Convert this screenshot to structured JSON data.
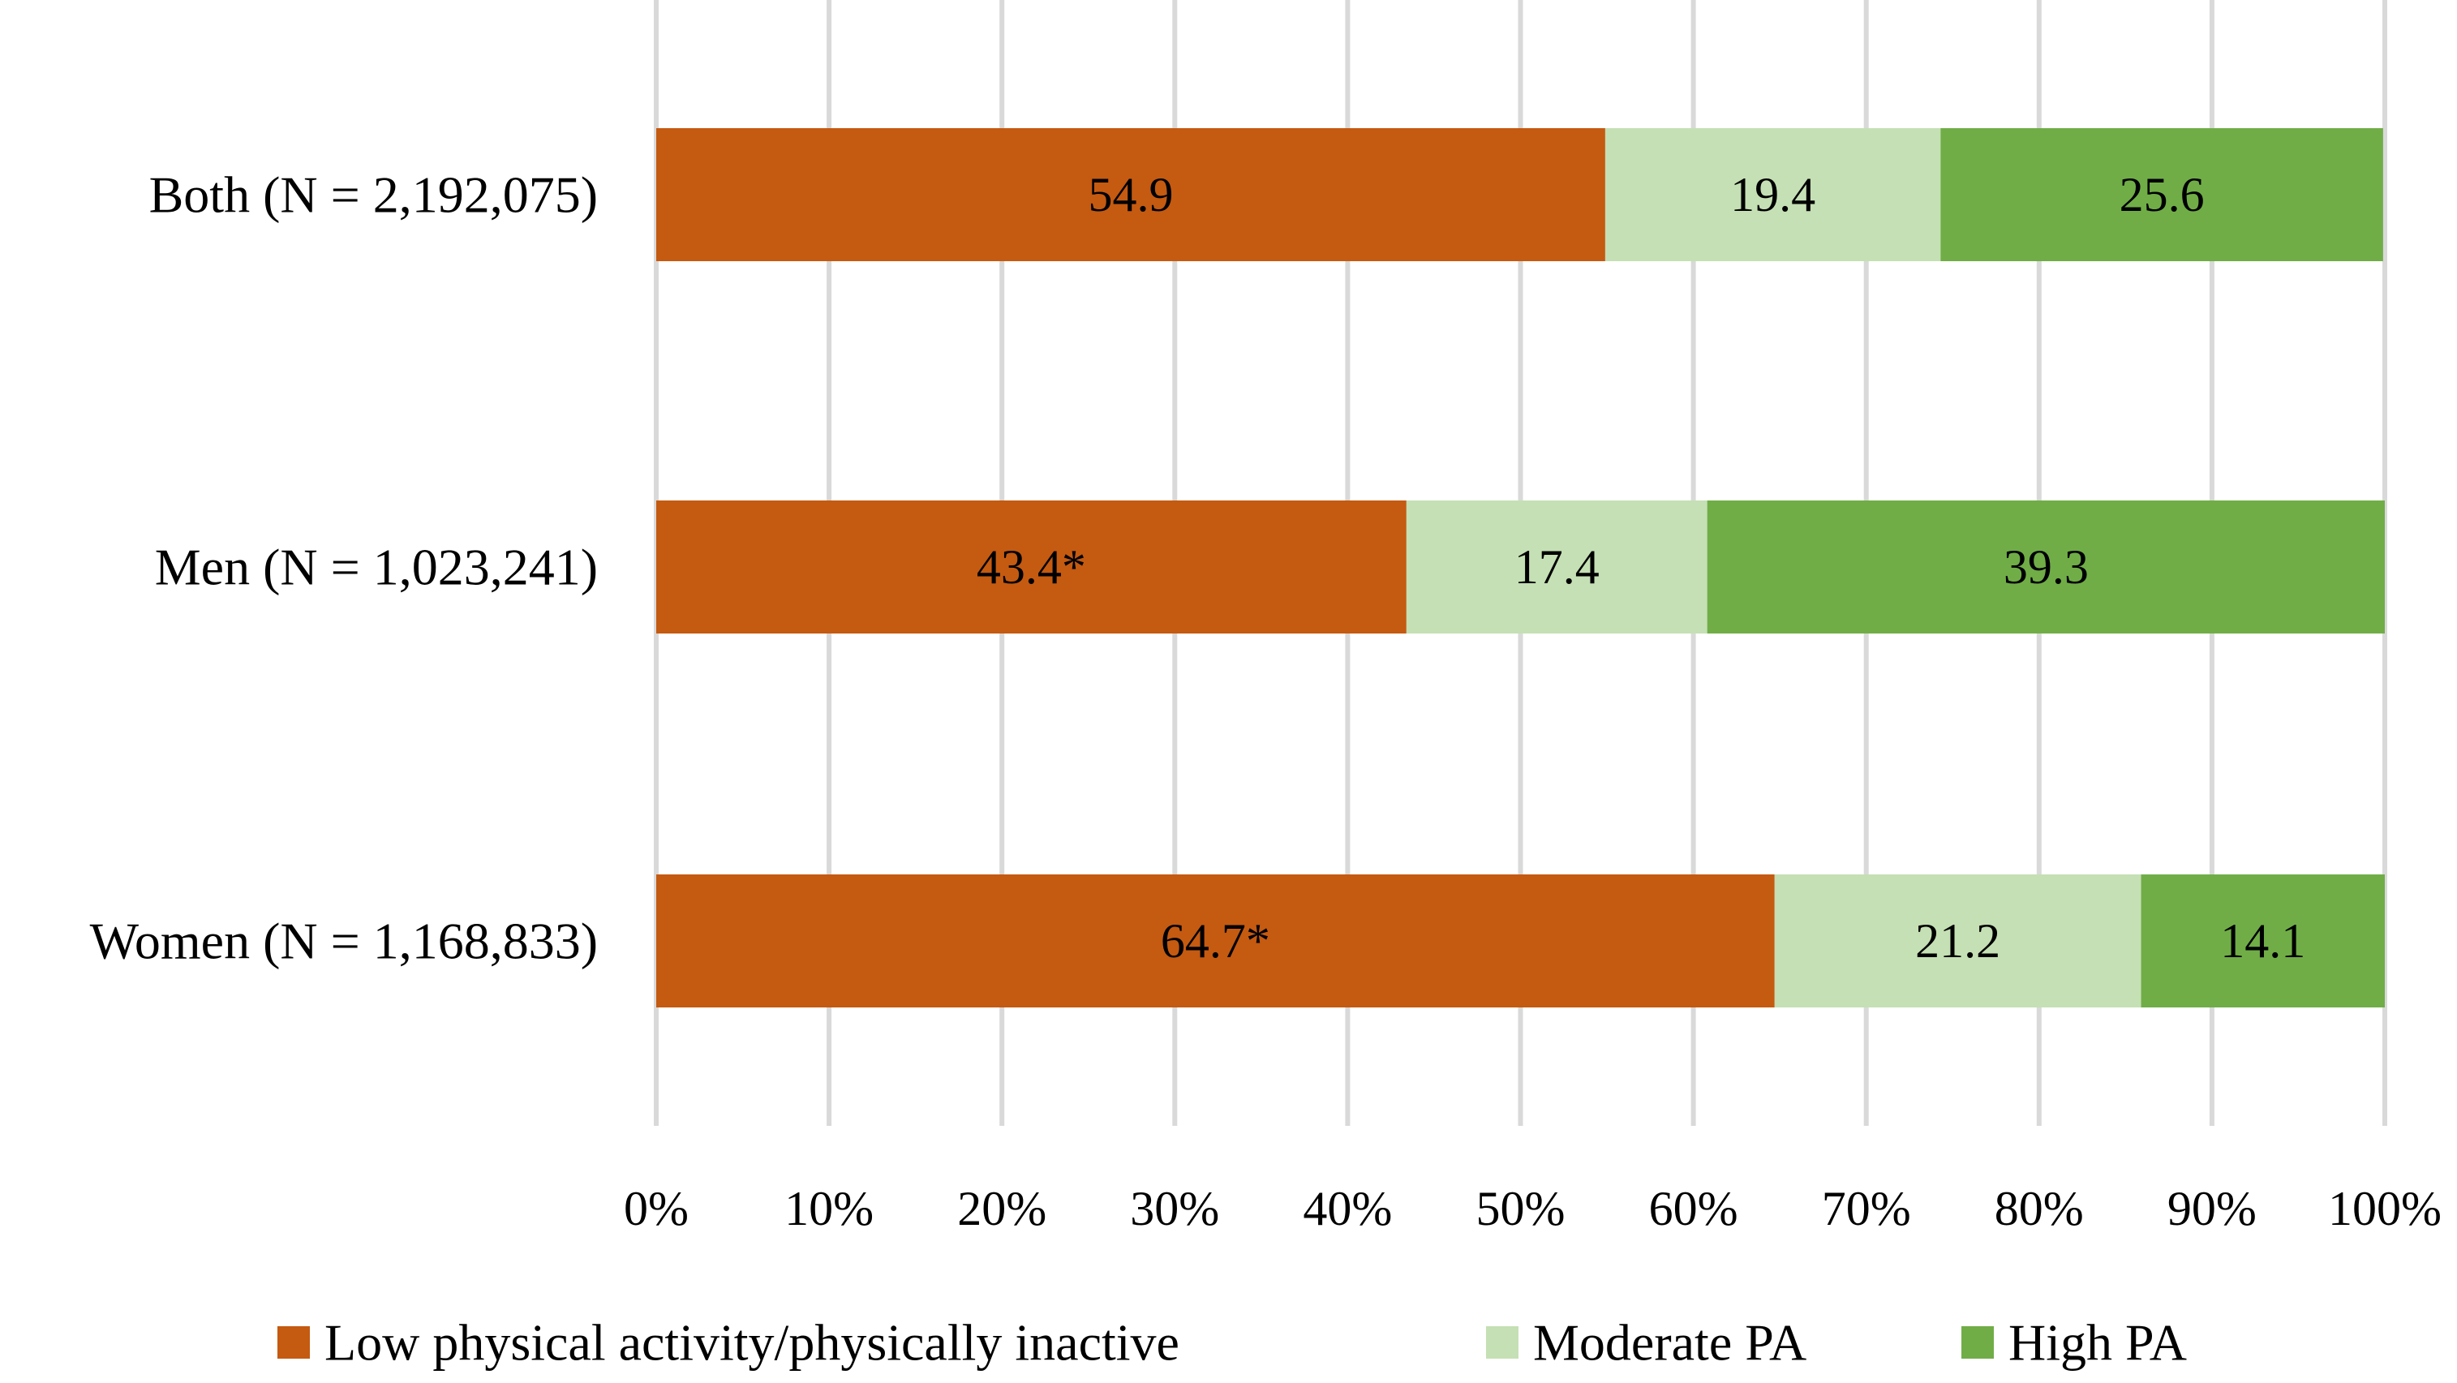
{
  "chart_data": {
    "type": "bar",
    "orientation": "horizontal",
    "stacked": true,
    "categories": [
      "Both (N = 2,192,075)",
      "Men (N = 1,023,241)",
      "Women (N = 1,168,833)"
    ],
    "series": [
      {
        "name": "Low physical activity/physically inactive",
        "color": "#c55a11",
        "values": [
          54.9,
          43.4,
          64.7
        ],
        "labels": [
          "54.9",
          "43.4*",
          "64.7*"
        ]
      },
      {
        "name": "Moderate PA",
        "color": "#c5e0b4",
        "values": [
          19.4,
          17.4,
          21.2
        ],
        "labels": [
          "19.4",
          "17.4",
          "21.2"
        ]
      },
      {
        "name": "High PA",
        "color": "#70ad47",
        "values": [
          25.6,
          39.3,
          14.1
        ],
        "labels": [
          "25.6",
          "39.3",
          "14.1"
        ]
      }
    ],
    "xlim": [
      0,
      100
    ],
    "xticks": [
      0,
      10,
      20,
      30,
      40,
      50,
      60,
      70,
      80,
      90,
      100
    ],
    "xtick_labels": [
      "0%",
      "10%",
      "20%",
      "30%",
      "40%",
      "50%",
      "60%",
      "70%",
      "80%",
      "90%",
      "100%"
    ],
    "title": "",
    "xlabel": "",
    "ylabel": "",
    "grid": true,
    "legend_position": "bottom"
  }
}
